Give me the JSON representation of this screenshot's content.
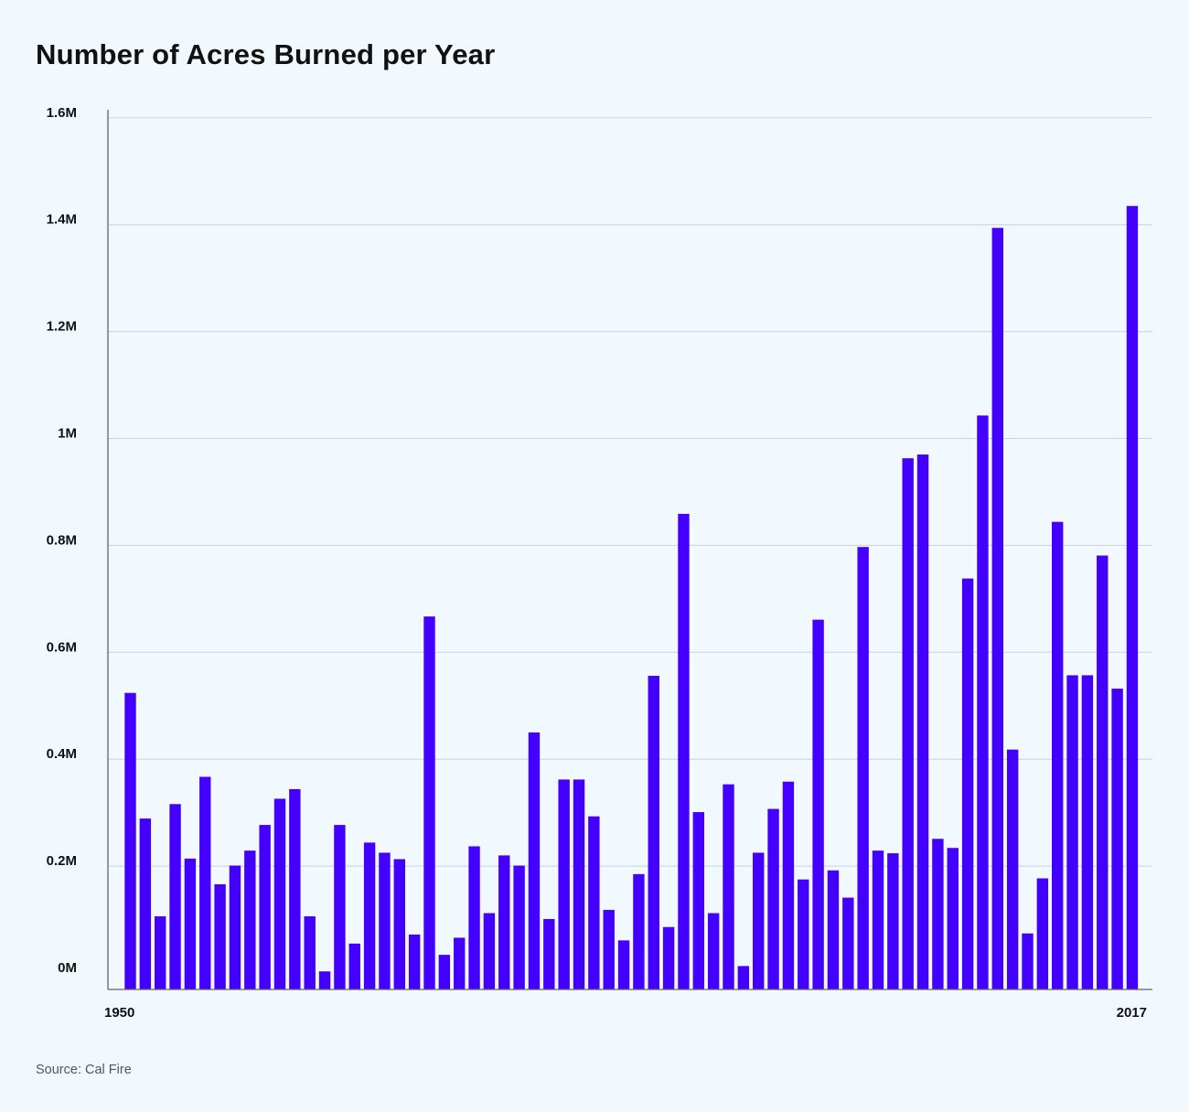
{
  "chart_data": {
    "type": "bar",
    "title": "Number of Acres Burned per Year",
    "xlabel": "",
    "ylabel": "",
    "ylim": [
      0,
      1600000
    ],
    "grid": true,
    "bar_color": "#4400ff",
    "y_ticks": [
      {
        "value": 0,
        "label": "0M"
      },
      {
        "value": 200000,
        "label": "0.2M"
      },
      {
        "value": 400000,
        "label": "0.4M"
      },
      {
        "value": 600000,
        "label": "0.6M"
      },
      {
        "value": 800000,
        "label": "0.8M"
      },
      {
        "value": 1000000,
        "label": "1M"
      },
      {
        "value": 1200000,
        "label": "1.2M"
      },
      {
        "value": 1400000,
        "label": "1.4M"
      },
      {
        "value": 1600000,
        "label": "1.6M"
      }
    ],
    "x_tick_labels": {
      "first": "1950",
      "last": "2017"
    },
    "categories": [
      1950,
      1951,
      1952,
      1953,
      1954,
      1955,
      1956,
      1957,
      1958,
      1959,
      1960,
      1961,
      1962,
      1963,
      1964,
      1965,
      1966,
      1967,
      1968,
      1969,
      1970,
      1971,
      1972,
      1973,
      1974,
      1975,
      1976,
      1977,
      1978,
      1979,
      1980,
      1981,
      1982,
      1983,
      1984,
      1985,
      1986,
      1987,
      1988,
      1989,
      1990,
      1991,
      1992,
      1993,
      1994,
      1995,
      1996,
      1997,
      1998,
      1999,
      2000,
      2001,
      2002,
      2003,
      2004,
      2005,
      2006,
      2007,
      2008,
      2009,
      2010,
      2011,
      2012,
      2013,
      2014,
      2015,
      2016,
      2017
    ],
    "values": [
      524000,
      289000,
      106000,
      316000,
      214000,
      367000,
      166000,
      201000,
      229000,
      277000,
      326000,
      344000,
      106000,
      3000,
      277000,
      55000,
      244000,
      225000,
      213000,
      72000,
      667000,
      34000,
      66000,
      237000,
      112000,
      220000,
      201000,
      450000,
      101000,
      362000,
      362000,
      293000,
      118000,
      61000,
      185000,
      556000,
      86000,
      859000,
      301000,
      112000,
      353000,
      13000,
      225000,
      307000,
      358000,
      175000,
      661000,
      192000,
      141000,
      797000,
      229000,
      224000,
      963000,
      970000,
      251000,
      234000,
      738000,
      1043000,
      1394000,
      418000,
      74000,
      177000,
      844000,
      557000,
      557000,
      781000,
      532000,
      1435000
    ]
  },
  "source": "Source: Cal Fire"
}
